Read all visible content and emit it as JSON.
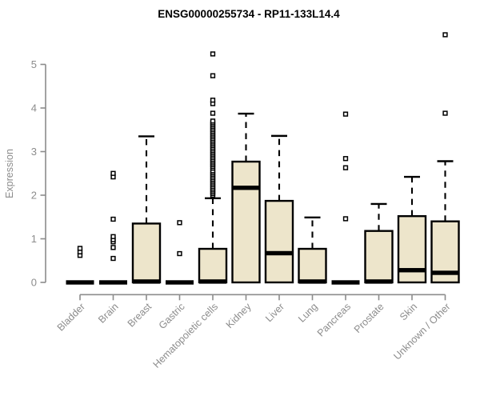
{
  "chart_data": {
    "type": "boxplot",
    "title": "ENSG00000255734 - RP11-133L14.4",
    "ylabel": "Expression",
    "xlabel": "",
    "ylim": [
      0,
      5.8
    ],
    "yticks": [
      0,
      1,
      2,
      3,
      4,
      5
    ],
    "grid": false,
    "legend": "none",
    "colors": {
      "box_fill": "#EDE5CB",
      "box_stroke": "#000000",
      "median": "#000000",
      "whisker": "#000000",
      "outlier_stroke": "#000000",
      "outlier_fill": "#ffffff",
      "axis": "#8c8c8c",
      "tick_label": "#8c8c8c",
      "title": "#000000",
      "background": "#ffffff"
    },
    "categories": [
      "Bladder",
      "Brain",
      "Breast",
      "Gastric",
      "Hematopoietic cells",
      "Kidney",
      "Liver",
      "Lung",
      "Pancreas",
      "Prostate",
      "Skin",
      "Unknown / Other"
    ],
    "boxes": [
      {
        "category": "Bladder",
        "whisker_low": 0,
        "q1": 0,
        "median": 0,
        "q3": 0,
        "whisker_high": 0,
        "outliers": [
          0.62,
          0.7,
          0.78
        ]
      },
      {
        "category": "Brain",
        "whisker_low": 0,
        "q1": 0,
        "median": 0,
        "q3": 0,
        "whisker_high": 0,
        "outliers": [
          0.55,
          0.8,
          0.93,
          0.98,
          1.05,
          1.45,
          2.42,
          2.5
        ]
      },
      {
        "category": "Breast",
        "whisker_low": 0,
        "q1": 0,
        "median": 0.02,
        "q3": 1.35,
        "whisker_high": 3.35,
        "outliers": []
      },
      {
        "category": "Gastric",
        "whisker_low": 0,
        "q1": 0,
        "median": 0,
        "q3": 0,
        "whisker_high": 0,
        "outliers": [
          0.66,
          1.37
        ]
      },
      {
        "category": "Hematopoietic cells",
        "whisker_low": 0,
        "q1": 0,
        "median": 0.02,
        "q3": 0.77,
        "whisker_high": 1.93,
        "outliers": [
          2.0,
          2.04,
          2.08,
          2.12,
          2.16,
          2.2,
          2.24,
          2.28,
          2.32,
          2.36,
          2.4,
          2.44,
          2.48,
          2.52,
          2.56,
          2.62,
          2.66,
          2.7,
          2.74,
          2.78,
          2.82,
          2.86,
          2.9,
          2.94,
          2.98,
          3.02,
          3.06,
          3.1,
          3.14,
          3.18,
          3.22,
          3.26,
          3.3,
          3.34,
          3.38,
          3.42,
          3.46,
          3.5,
          3.54,
          3.58,
          3.62,
          3.66,
          3.7,
          3.88,
          4.1,
          4.18,
          4.74,
          5.24
        ]
      },
      {
        "category": "Kidney",
        "whisker_low": 0,
        "q1": 0,
        "median": 2.17,
        "q3": 2.77,
        "whisker_high": 3.87,
        "outliers": []
      },
      {
        "category": "Liver",
        "whisker_low": 0,
        "q1": 0,
        "median": 0.67,
        "q3": 1.87,
        "whisker_high": 3.36,
        "outliers": []
      },
      {
        "category": "Lung",
        "whisker_low": 0,
        "q1": 0,
        "median": 0.02,
        "q3": 0.77,
        "whisker_high": 1.49,
        "outliers": []
      },
      {
        "category": "Pancreas",
        "whisker_low": 0,
        "q1": 0,
        "median": 0,
        "q3": 0,
        "whisker_high": 0,
        "outliers": [
          1.46,
          2.63,
          2.84,
          3.86
        ]
      },
      {
        "category": "Prostate",
        "whisker_low": 0,
        "q1": 0,
        "median": 0.02,
        "q3": 1.18,
        "whisker_high": 1.8,
        "outliers": []
      },
      {
        "category": "Skin",
        "whisker_low": 0,
        "q1": 0,
        "median": 0.28,
        "q3": 1.52,
        "whisker_high": 2.42,
        "outliers": []
      },
      {
        "category": "Unknown / Other",
        "whisker_low": 0,
        "q1": 0,
        "median": 0.22,
        "q3": 1.4,
        "whisker_high": 2.78,
        "outliers": [
          3.88,
          5.68
        ]
      }
    ]
  }
}
